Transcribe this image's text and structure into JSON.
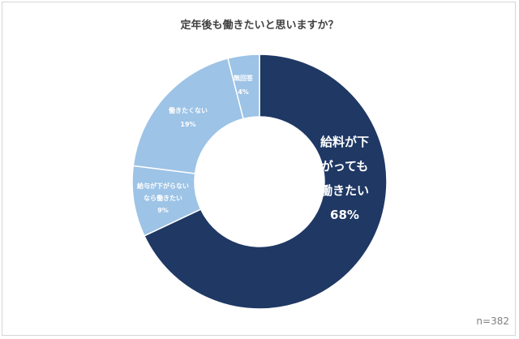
{
  "chart_data": {
    "type": "pie",
    "variant": "donut",
    "title": "定年後も働きたいと思いますか？",
    "note": "n=382",
    "slices": [
      {
        "label_lines": [
          "給料が下",
          "がっても",
          "働きたい"
        ],
        "value": 68,
        "value_label": "68%",
        "color": "#1f3864"
      },
      {
        "label_lines": [
          "給与が下がらない",
          "なら働きたい"
        ],
        "value": 9,
        "value_label": "9%",
        "color": "#9dc3e6"
      },
      {
        "label_lines": [
          "働きたくない"
        ],
        "value": 19,
        "value_label": "19%",
        "color": "#9dc3e6"
      },
      {
        "label_lines": [
          "無回答"
        ],
        "value": 4,
        "value_label": "4%",
        "color": "#9dc3e6"
      }
    ],
    "start_angle_deg": 0,
    "direction": "clockwise",
    "separator_color": "#ffffff"
  }
}
